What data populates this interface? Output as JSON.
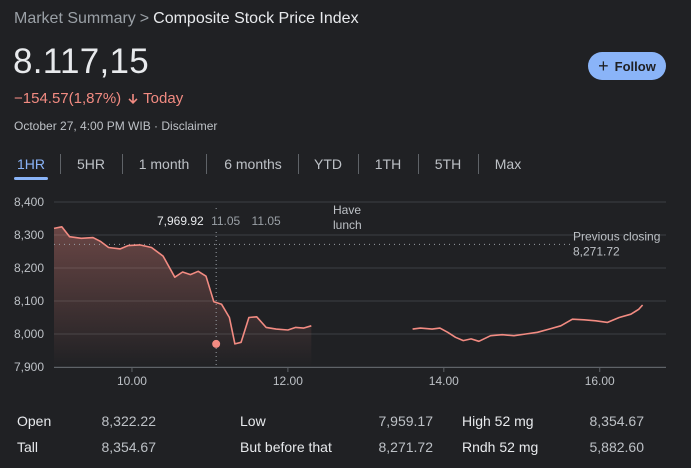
{
  "breadcrumb": {
    "parent": "Market Summary",
    "separator": ">",
    "current": "Composite Stock Price Index"
  },
  "price": "8.117,15",
  "change": {
    "value": "−154.57(1,87%)",
    "period": "Today"
  },
  "meta": "October 27, 4:00 PM WIB · Disclaimer",
  "follow_label": "Follow",
  "tabs": [
    {
      "label": "1HR",
      "active": true
    },
    {
      "label": "5HR",
      "active": false
    },
    {
      "label": "1 month",
      "active": false
    },
    {
      "label": "6 months",
      "active": false
    },
    {
      "label": "YTD",
      "active": false
    },
    {
      "label": "1TH",
      "active": false
    },
    {
      "label": "5TH",
      "active": false
    },
    {
      "label": "Max",
      "active": false
    }
  ],
  "colors": {
    "line": "#f28b82",
    "accent": "#8ab4f8",
    "background": "#202124"
  },
  "chart_data": {
    "type": "line",
    "y_ticks": [
      "8,400",
      "8,300",
      "8,200",
      "8,100",
      "8,000",
      "7,900"
    ],
    "x_ticks": [
      "10.00",
      "12.00",
      "14.00",
      "16.00"
    ],
    "ylim": [
      7900,
      8400
    ],
    "xlim": [
      9.0,
      16.85
    ],
    "tooltip": {
      "value": "7,969.92",
      "time": "11.05",
      "time2": "11.05",
      "x": 11.08,
      "y": 7969.92
    },
    "annotation": [
      "Have",
      "lunch"
    ],
    "previous_close": {
      "label": "Previous closing",
      "value": "8,271.72",
      "y": 8271.72
    },
    "series_morning": [
      [
        9.0,
        8320
      ],
      [
        9.1,
        8325
      ],
      [
        9.2,
        8295
      ],
      [
        9.35,
        8290
      ],
      [
        9.5,
        8292
      ],
      [
        9.6,
        8280
      ],
      [
        9.7,
        8262
      ],
      [
        9.85,
        8258
      ],
      [
        9.95,
        8268
      ],
      [
        10.1,
        8270
      ],
      [
        10.25,
        8262
      ],
      [
        10.4,
        8236
      ],
      [
        10.55,
        8172
      ],
      [
        10.65,
        8188
      ],
      [
        10.75,
        8180
      ],
      [
        10.85,
        8190
      ],
      [
        10.95,
        8175
      ],
      [
        11.05,
        8098
      ],
      [
        11.15,
        8090
      ],
      [
        11.25,
        8050
      ],
      [
        11.32,
        7970
      ],
      [
        11.4,
        7975
      ],
      [
        11.5,
        8050
      ],
      [
        11.6,
        8052
      ],
      [
        11.72,
        8020
      ],
      [
        11.85,
        8015
      ],
      [
        12.0,
        8012
      ],
      [
        12.1,
        8020
      ],
      [
        12.2,
        8018
      ],
      [
        12.3,
        8025
      ]
    ],
    "series_afternoon": [
      [
        13.6,
        8015
      ],
      [
        13.7,
        8018
      ],
      [
        13.85,
        8015
      ],
      [
        13.95,
        8018
      ],
      [
        14.05,
        8005
      ],
      [
        14.15,
        7990
      ],
      [
        14.25,
        7980
      ],
      [
        14.35,
        7985
      ],
      [
        14.45,
        7978
      ],
      [
        14.6,
        7995
      ],
      [
        14.75,
        7998
      ],
      [
        14.9,
        7995
      ],
      [
        15.05,
        8000
      ],
      [
        15.2,
        8005
      ],
      [
        15.35,
        8015
      ],
      [
        15.5,
        8025
      ],
      [
        15.65,
        8045
      ],
      [
        15.8,
        8043
      ],
      [
        15.95,
        8040
      ],
      [
        16.1,
        8035
      ],
      [
        16.25,
        8050
      ],
      [
        16.4,
        8060
      ],
      [
        16.5,
        8075
      ],
      [
        16.55,
        8088
      ]
    ]
  },
  "stats": [
    {
      "label": "Open",
      "value": "8,322.22"
    },
    {
      "label": "Tall",
      "value": "8,354.67"
    },
    {
      "label": "Low",
      "value": "7,959.17"
    },
    {
      "label": "But before that",
      "value": "8,271.72"
    },
    {
      "label": "High 52 mg",
      "value": "8,354.67"
    },
    {
      "label": "Rndh 52 mg",
      "value": "5,882.60"
    }
  ]
}
